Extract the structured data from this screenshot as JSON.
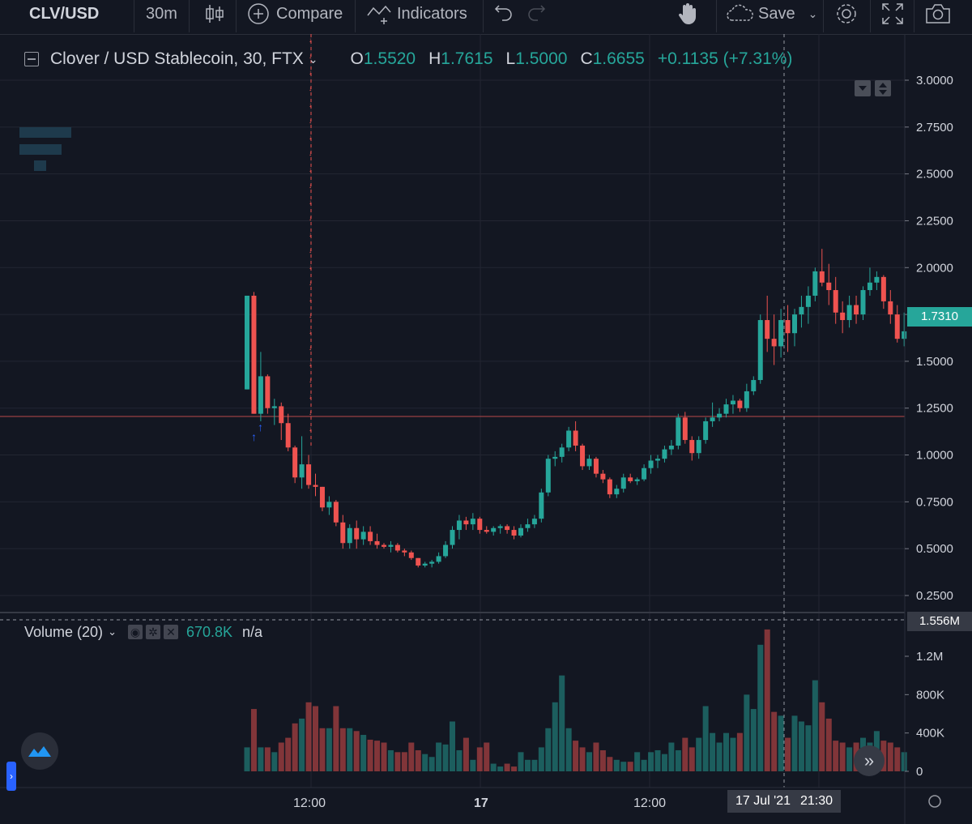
{
  "toolbar": {
    "symbol": "CLV/USD",
    "interval": "30m",
    "compare_label": "Compare",
    "indicators_label": "Indicators",
    "save_label": "Save"
  },
  "legend": {
    "title": "Clover / USD Stablecoin, 30, FTX",
    "o_key": "O",
    "o_val": "1.5520",
    "h_key": "H",
    "h_val": "1.7615",
    "l_key": "L",
    "l_val": "1.5000",
    "c_key": "C",
    "c_val": "1.6655",
    "change": "+0.1135 (+7.31%)"
  },
  "volume_legend": {
    "label": "Volume (20)",
    "value": "670.8K",
    "na": "n/a"
  },
  "price_axis": [
    "3.0000",
    "2.7500",
    "2.5000",
    "2.2500",
    "2.0000",
    "1.7500",
    "1.5000",
    "1.2500",
    "1.0000",
    "0.7500",
    "0.5000",
    "0.2500"
  ],
  "volume_axis": [
    "1.2M",
    "800K",
    "400K",
    "0"
  ],
  "time_axis": [
    "12:00",
    "17",
    "12:00",
    "21:30"
  ],
  "last_price_label": "1.7310",
  "crosshair_volume_label": "1.556M",
  "crosshair_time_label": "17 Jul '21",
  "colors": {
    "up": "#26a69a",
    "down": "#ef5350",
    "bg": "#131722",
    "grid": "#232632"
  },
  "chart_data": {
    "type": "candlestick",
    "price_range": [
      0.1,
      3.1
    ],
    "volume_range": [
      0,
      1400000
    ],
    "candles": [
      [
        1.35,
        1.85,
        1.35,
        1.85,
        0.25
      ],
      [
        1.85,
        1.87,
        1.22,
        1.22,
        0.65
      ],
      [
        1.22,
        1.55,
        1.18,
        1.42,
        0.25
      ],
      [
        1.42,
        1.43,
        1.22,
        1.25,
        0.25
      ],
      [
        1.25,
        1.3,
        1.16,
        1.26,
        0.2
      ],
      [
        1.26,
        1.28,
        1.08,
        1.17,
        0.3
      ],
      [
        1.17,
        1.22,
        1.02,
        1.04,
        0.35
      ],
      [
        1.04,
        1.05,
        0.85,
        0.88,
        0.5
      ],
      [
        0.88,
        1.1,
        0.82,
        0.95,
        0.55
      ],
      [
        0.95,
        1.0,
        0.82,
        0.84,
        0.72
      ],
      [
        0.84,
        0.9,
        0.78,
        0.83,
        0.68
      ],
      [
        0.83,
        0.83,
        0.7,
        0.72,
        0.45
      ],
      [
        0.72,
        0.78,
        0.68,
        0.75,
        0.45
      ],
      [
        0.75,
        0.76,
        0.62,
        0.64,
        0.68
      ],
      [
        0.64,
        0.68,
        0.5,
        0.53,
        0.45
      ],
      [
        0.53,
        0.63,
        0.5,
        0.61,
        0.45
      ],
      [
        0.61,
        0.65,
        0.5,
        0.55,
        0.42
      ],
      [
        0.55,
        0.62,
        0.52,
        0.59,
        0.38
      ],
      [
        0.59,
        0.62,
        0.52,
        0.54,
        0.33
      ],
      [
        0.54,
        0.58,
        0.5,
        0.52,
        0.32
      ],
      [
        0.52,
        0.53,
        0.5,
        0.51,
        0.3
      ],
      [
        0.51,
        0.54,
        0.48,
        0.52,
        0.22
      ],
      [
        0.52,
        0.53,
        0.48,
        0.49,
        0.2
      ],
      [
        0.49,
        0.5,
        0.46,
        0.48,
        0.2
      ],
      [
        0.48,
        0.49,
        0.44,
        0.45,
        0.3
      ],
      [
        0.45,
        0.45,
        0.4,
        0.41,
        0.22
      ],
      [
        0.41,
        0.43,
        0.4,
        0.42,
        0.18
      ],
      [
        0.42,
        0.44,
        0.4,
        0.43,
        0.15
      ],
      [
        0.43,
        0.48,
        0.42,
        0.46,
        0.3
      ],
      [
        0.46,
        0.54,
        0.45,
        0.52,
        0.28
      ],
      [
        0.52,
        0.62,
        0.5,
        0.6,
        0.52
      ],
      [
        0.6,
        0.68,
        0.55,
        0.65,
        0.22
      ],
      [
        0.65,
        0.67,
        0.6,
        0.63,
        0.35
      ],
      [
        0.63,
        0.69,
        0.6,
        0.66,
        0.12
      ],
      [
        0.66,
        0.67,
        0.58,
        0.6,
        0.25
      ],
      [
        0.6,
        0.62,
        0.58,
        0.59,
        0.3
      ],
      [
        0.59,
        0.62,
        0.57,
        0.61,
        0.08
      ],
      [
        0.61,
        0.63,
        0.58,
        0.62,
        0.05
      ],
      [
        0.62,
        0.63,
        0.58,
        0.6,
        0.08
      ],
      [
        0.6,
        0.62,
        0.55,
        0.57,
        0.05
      ],
      [
        0.57,
        0.63,
        0.56,
        0.61,
        0.2
      ],
      [
        0.61,
        0.66,
        0.59,
        0.63,
        0.12
      ],
      [
        0.63,
        0.68,
        0.61,
        0.66,
        0.12
      ],
      [
        0.66,
        0.82,
        0.64,
        0.8,
        0.25
      ],
      [
        0.8,
        1.0,
        0.78,
        0.98,
        0.45
      ],
      [
        0.98,
        1.02,
        0.94,
        0.99,
        0.72
      ],
      [
        0.99,
        1.06,
        0.96,
        1.04,
        1.0
      ],
      [
        1.04,
        1.15,
        1.02,
        1.13,
        0.45
      ],
      [
        1.13,
        1.18,
        1.02,
        1.05,
        0.32
      ],
      [
        1.05,
        1.06,
        0.92,
        0.94,
        0.25
      ],
      [
        0.94,
        1.0,
        0.92,
        0.98,
        0.2
      ],
      [
        0.98,
        0.99,
        0.88,
        0.9,
        0.3
      ],
      [
        0.9,
        0.92,
        0.85,
        0.87,
        0.22
      ],
      [
        0.87,
        0.88,
        0.77,
        0.79,
        0.15
      ],
      [
        0.79,
        0.84,
        0.77,
        0.82,
        0.12
      ],
      [
        0.82,
        0.9,
        0.8,
        0.88,
        0.1
      ],
      [
        0.88,
        0.9,
        0.85,
        0.86,
        0.1
      ],
      [
        0.86,
        0.88,
        0.84,
        0.87,
        0.2
      ],
      [
        0.87,
        0.95,
        0.86,
        0.93,
        0.12
      ],
      [
        0.93,
        1.0,
        0.9,
        0.97,
        0.2
      ],
      [
        0.97,
        1.0,
        0.93,
        0.98,
        0.22
      ],
      [
        0.98,
        1.05,
        0.96,
        1.03,
        0.18
      ],
      [
        1.03,
        1.08,
        1.0,
        1.05,
        0.3
      ],
      [
        1.05,
        1.22,
        1.03,
        1.2,
        0.22
      ],
      [
        1.2,
        1.23,
        1.06,
        1.08,
        0.35
      ],
      [
        1.08,
        1.1,
        0.97,
        1.01,
        0.25
      ],
      [
        1.01,
        1.1,
        0.98,
        1.08,
        0.35
      ],
      [
        1.08,
        1.2,
        1.06,
        1.18,
        0.68
      ],
      [
        1.18,
        1.28,
        1.15,
        1.2,
        0.4
      ],
      [
        1.2,
        1.25,
        1.18,
        1.22,
        0.3
      ],
      [
        1.22,
        1.3,
        1.2,
        1.27,
        0.4
      ],
      [
        1.27,
        1.32,
        1.22,
        1.29,
        0.35
      ],
      [
        1.29,
        1.3,
        1.23,
        1.25,
        0.4
      ],
      [
        1.25,
        1.38,
        1.23,
        1.34,
        0.8
      ],
      [
        1.34,
        1.42,
        1.32,
        1.4,
        0.65
      ],
      [
        1.4,
        1.75,
        1.38,
        1.72,
        1.32
      ],
      [
        1.72,
        1.85,
        1.55,
        1.62,
        1.48
      ],
      [
        1.62,
        1.75,
        1.48,
        1.58,
        0.62
      ],
      [
        1.58,
        1.78,
        1.52,
        1.72,
        0.58
      ],
      [
        1.72,
        1.8,
        1.55,
        1.65,
        0.35
      ],
      [
        1.65,
        1.78,
        1.58,
        1.75,
        0.58
      ],
      [
        1.75,
        1.85,
        1.68,
        1.79,
        0.52
      ],
      [
        1.79,
        1.9,
        1.7,
        1.85,
        0.48
      ],
      [
        1.85,
        2.0,
        1.82,
        1.98,
        0.95
      ],
      [
        1.98,
        2.1,
        1.9,
        1.92,
        0.72
      ],
      [
        1.92,
        2.02,
        1.8,
        1.88,
        0.55
      ],
      [
        1.88,
        1.95,
        1.7,
        1.76,
        0.32
      ],
      [
        1.76,
        1.82,
        1.65,
        1.72,
        0.3
      ],
      [
        1.72,
        1.85,
        1.68,
        1.8,
        0.25
      ],
      [
        1.8,
        1.85,
        1.7,
        1.75,
        0.3
      ],
      [
        1.75,
        1.9,
        1.72,
        1.88,
        0.35
      ],
      [
        1.88,
        2.0,
        1.85,
        1.92,
        0.3
      ],
      [
        1.92,
        1.98,
        1.88,
        1.95,
        0.42
      ],
      [
        1.95,
        1.96,
        1.78,
        1.82,
        0.32
      ],
      [
        1.82,
        1.88,
        1.7,
        1.75,
        0.3
      ],
      [
        1.75,
        1.8,
        1.6,
        1.62,
        0.25
      ],
      [
        1.62,
        1.76,
        1.58,
        1.66,
        0.2
      ]
    ]
  }
}
